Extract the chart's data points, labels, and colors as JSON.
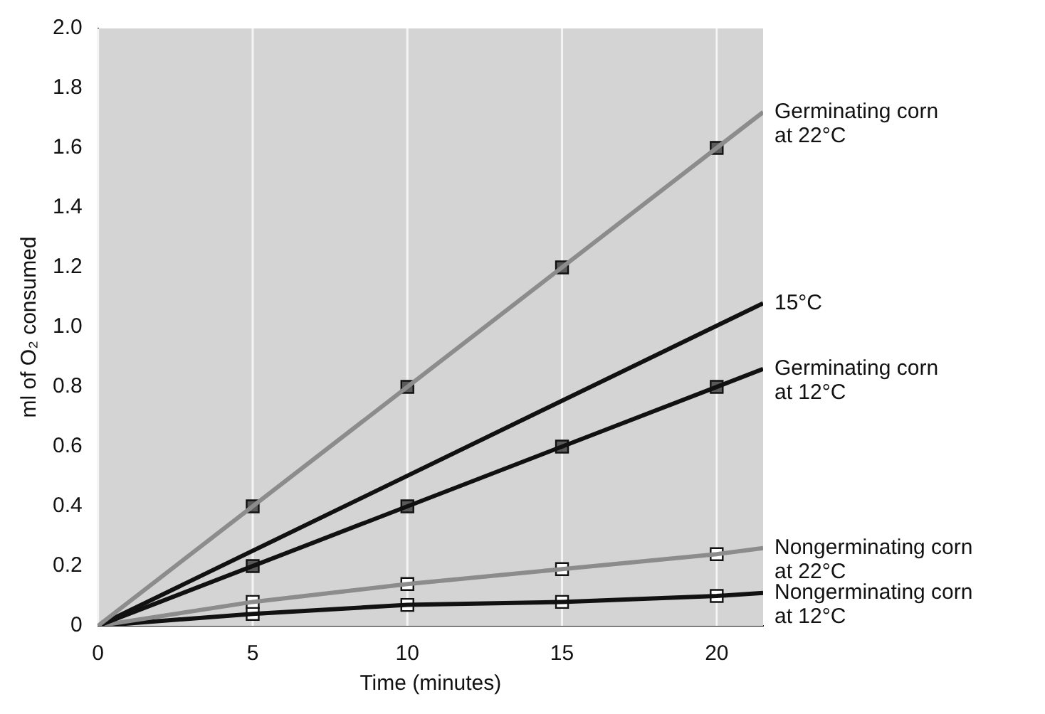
{
  "chart_data": {
    "type": "line",
    "xlabel": "Time (minutes)",
    "ylabel": "ml of O₂ consumed",
    "xlim": [
      0,
      21.5
    ],
    "ylim": [
      0,
      2
    ],
    "xticks": [
      0,
      5,
      10,
      15,
      20
    ],
    "yticks": [
      0,
      0.2,
      0.4,
      0.6,
      0.8,
      {
        "value": 1,
        "label": "1.0"
      },
      1.2,
      1.4,
      1.6,
      1.8,
      {
        "value": 2,
        "label": "2.0"
      }
    ],
    "grid": "x",
    "legend": false,
    "line_style": "solid",
    "series": [
      {
        "name": "Germinating corn at 22°C",
        "type": "line",
        "marker": "none",
        "color": "#8c8c8c",
        "x": [
          0,
          21.5
        ],
        "values": [
          0,
          1.72
        ]
      },
      {
        "type": "scatter",
        "marker": "square",
        "color": "#5a5a5a",
        "x": [
          5,
          10,
          15,
          20
        ],
        "values": [
          0.4,
          0.8,
          1.2,
          1.6
        ]
      },
      {
        "name": "15°C",
        "type": "line",
        "marker": "none",
        "color": "#111111",
        "x": [
          0,
          21.5
        ],
        "values": [
          0,
          1.08
        ]
      },
      {
        "name": "Germinating corn at 12°C",
        "type": "line",
        "marker": "none",
        "color": "#111111",
        "x": [
          0,
          21.5
        ],
        "values": [
          0,
          0.86
        ]
      },
      {
        "type": "scatter",
        "marker": "square",
        "color": "#5a5a5a",
        "x": [
          5,
          10,
          15,
          20
        ],
        "values": [
          0.2,
          0.4,
          0.6,
          0.8
        ]
      },
      {
        "name": "Nongerminating corn at 22°C",
        "type": "line",
        "marker": "none",
        "color": "#8c8c8c",
        "x": [
          0,
          5,
          10,
          15,
          20,
          21.5
        ],
        "values": [
          0,
          0.08,
          0.14,
          0.19,
          0.24,
          0.26
        ]
      },
      {
        "type": "scatter",
        "marker": "square",
        "color": "#ffffff",
        "x": [
          5,
          10,
          15,
          20
        ],
        "values": [
          0.08,
          0.14,
          0.19,
          0.24
        ]
      },
      {
        "name": "Nongerminating corn at 12°C",
        "type": "line",
        "marker": "none",
        "color": "#111111",
        "x": [
          0,
          5,
          10,
          15,
          20,
          21.5
        ],
        "values": [
          0,
          0.04,
          0.07,
          0.08,
          0.1,
          0.11
        ]
      },
      {
        "type": "scatter",
        "marker": "square",
        "color": "#ffffff",
        "x": [
          5,
          10,
          15,
          20
        ],
        "values": [
          0.04,
          0.07,
          0.08,
          0.1
        ]
      }
    ]
  }
}
